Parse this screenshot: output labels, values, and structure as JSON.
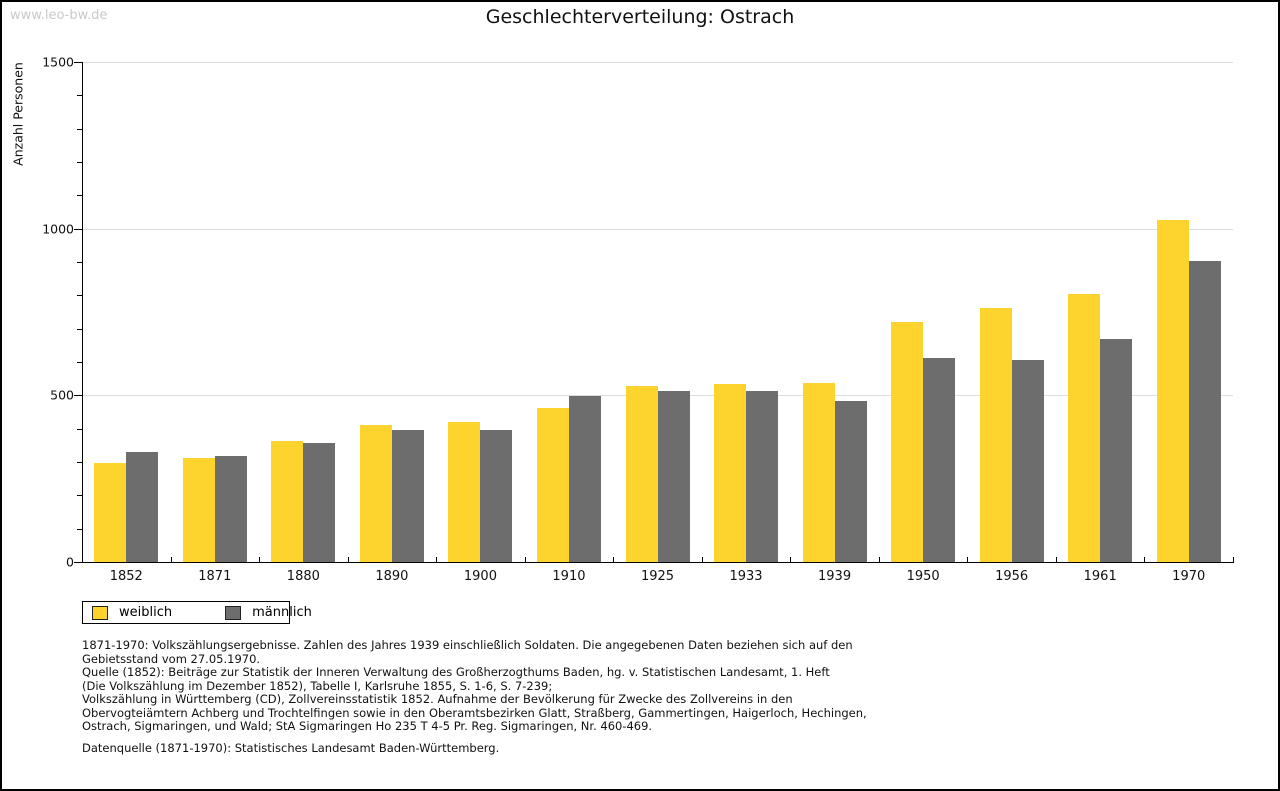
{
  "page": {
    "watermark": "www.leo-bw.de",
    "title": "Geschlechterverteilung: Ostrach"
  },
  "chart_data": {
    "type": "bar",
    "title": "Geschlechterverteilung: Ostrach",
    "xlabel": "",
    "ylabel": "Anzahl Personen",
    "ylim": [
      0,
      1500
    ],
    "y_major_ticks": [
      0,
      500,
      1000,
      1500
    ],
    "y_minor_tick_interval": 100,
    "grid": true,
    "legend_position": "bottom-left",
    "categories": [
      "1852",
      "1871",
      "1880",
      "1890",
      "1900",
      "1910",
      "1925",
      "1933",
      "1939",
      "1950",
      "1956",
      "1961",
      "1970"
    ],
    "series": [
      {
        "name": "weiblich",
        "color": "#fdd32d",
        "values": [
          298,
          311,
          362,
          411,
          421,
          461,
          528,
          533,
          537,
          719,
          762,
          803,
          1027
        ]
      },
      {
        "name": "männlich",
        "color": "#6d6d6d",
        "values": [
          329,
          318,
          356,
          395,
          397,
          499,
          513,
          513,
          484,
          612,
          607,
          669,
          904
        ]
      }
    ]
  },
  "legend": {
    "items": [
      {
        "label": "weiblich",
        "color": "#fdd32d"
      },
      {
        "label": "männlich",
        "color": "#6d6d6d"
      }
    ]
  },
  "footnotes": {
    "lines": [
      "1871-1970: Volkszählungsergebnisse. Zahlen des Jahres 1939 einschließlich Soldaten. Die angegebenen Daten beziehen sich auf den",
      "Gebietsstand vom 27.05.1970.",
      "Quelle (1852): Beiträge zur Statistik der Inneren Verwaltung des Großherzogthums Baden, hg. v. Statistischen Landesamt, 1. Heft",
      "(Die Volkszählung im Dezember 1852), Tabelle I, Karlsruhe 1855, S. 1-6, S. 7-239;",
      "Volkszählung in Württemberg (CD), Zollvereinsstatistik 1852. Aufnahme der Bevölkerung für Zwecke des Zollvereins in den",
      "Obervogteiämtern Achberg und Trochtelfingen sowie in den Oberamtsbezirken Glatt, Straßberg, Gammertingen, Haigerloch, Hechingen,",
      "Ostrach, Sigmaringen, und Wald; StA Sigmaringen Ho 235 T 4-5 Pr. Reg. Sigmaringen, Nr. 460-469."
    ],
    "datasource": "Datenquelle (1871-1970): Statistisches Landesamt Baden-Württemberg."
  },
  "colors": {
    "female": "#fdd32d",
    "male": "#6d6d6d",
    "gridline": "#dcdcdc",
    "axis": "#000000",
    "watermark": "#c9c9c9"
  }
}
